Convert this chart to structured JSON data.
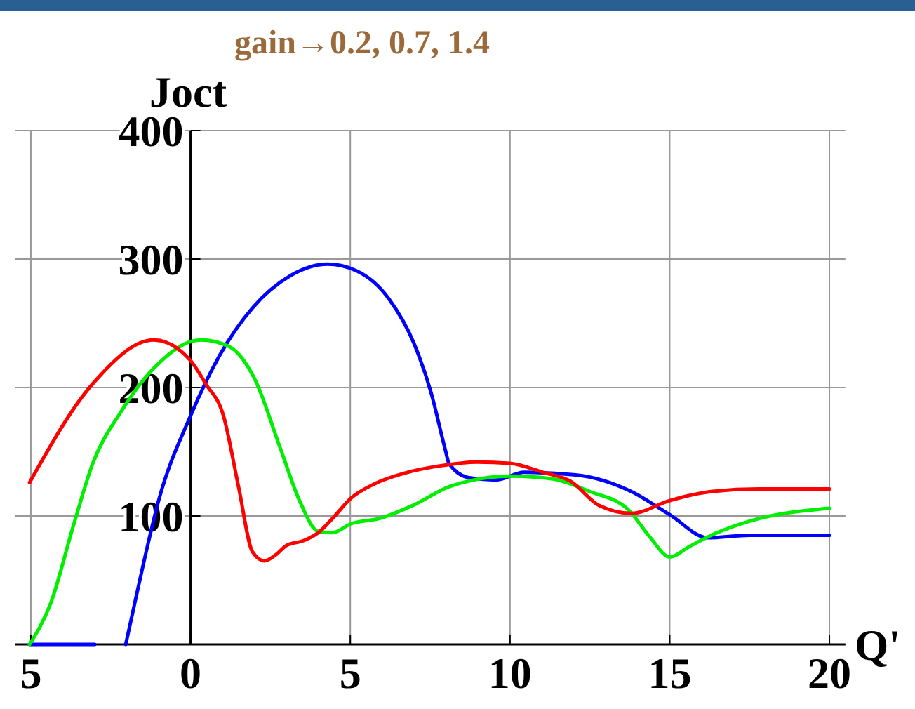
{
  "chart_data": {
    "type": "line",
    "title": "gain→0.2, 0.7, 1.4",
    "xlabel": "Q'",
    "ylabel": "Joct",
    "xlim": [
      -5.5,
      20.5
    ],
    "ylim": [
      0,
      400
    ],
    "xticks": [
      {
        "value": -5,
        "label": "5"
      },
      0,
      5,
      10,
      15,
      20
    ],
    "yticks": [
      {
        "value": 0,
        "label": null
      },
      100,
      200,
      300,
      400
    ],
    "grid": true,
    "marker": "none",
    "line_style": "solid",
    "series": [
      {
        "color": "#0000ff",
        "x": [
          -5.04,
          -3,
          -2.5,
          -2.03,
          -1.59,
          -1,
          0,
          0.91,
          1.94,
          3.12,
          4.29,
          5.18,
          6.21,
          7,
          7.53,
          7.97,
          8.09,
          8.68,
          9.56,
          10.44,
          12.06,
          13.8,
          15,
          16.2,
          17.5,
          20
        ],
        "values": [
          0,
          0,
          null,
          0,
          50,
          112,
          178,
          225,
          262,
          287,
          296,
          291,
          269,
          234,
          196,
          152,
          141,
          130,
          128,
          134,
          132,
          119,
          101,
          83,
          85,
          85
        ]
      },
      {
        "color": "#00ee00",
        "x": [
          -5.04,
          -4.38,
          -3.65,
          -3.06,
          -2.18,
          -1.15,
          0.32,
          1.2,
          2,
          2.82,
          3.41,
          4,
          4.44,
          5.03,
          5.91,
          6.94,
          8.12,
          8.68,
          10,
          11.3,
          12.5,
          13.7,
          14.4,
          15,
          15.6,
          16.3,
          17.5,
          20
        ],
        "values": [
          0,
          32,
          94,
          141,
          181,
          215,
          237,
          232,
          207,
          152,
          112,
          88,
          87,
          94,
          98,
          108,
          123,
          127,
          131,
          129,
          119,
          105,
          83,
          68,
          76,
          85,
          96,
          106
        ]
      },
      {
        "color": "#ff0000",
        "x": [
          -5.04,
          -3.06,
          -1.15,
          0,
          0.47,
          1.03,
          1.5,
          1.94,
          2.31,
          2.68,
          3,
          3.56,
          4,
          4.44,
          5.03,
          5.76,
          6.8,
          7.8,
          8.97,
          10,
          11.03,
          11.9,
          12.8,
          13.8,
          15,
          16.3,
          17.8,
          20
        ],
        "values": [
          126,
          203,
          237,
          221,
          203,
          178,
          123,
          72,
          65,
          70,
          77,
          81,
          87,
          98,
          114,
          125,
          134,
          139,
          142,
          141,
          134,
          127,
          108,
          102,
          112,
          119,
          121,
          121
        ]
      }
    ]
  }
}
